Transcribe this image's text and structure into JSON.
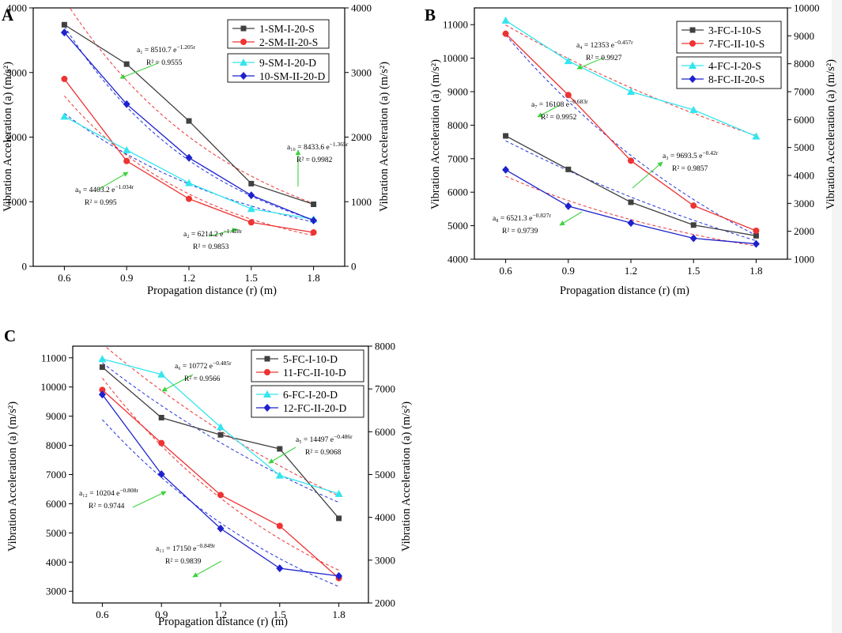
{
  "chart_data": [
    {
      "type": "line",
      "panel": "A",
      "xlabel": "Propagation distance (r) (m)",
      "ylabel_left": "Vibration Acceleration (a) (m/s²)",
      "ylabel_right": "Vibration Acceleration (a) (m/s²)",
      "x": [
        0.6,
        0.9,
        1.2,
        1.5,
        1.8
      ],
      "x_ticks": [
        "0.6",
        "0.9",
        "1.2",
        "1.5",
        "1.8"
      ],
      "xlim": [
        0.45,
        1.95
      ],
      "ylim_left": [
        0,
        4000
      ],
      "ylim_right": [
        0,
        4000
      ],
      "yticks_left": [
        0,
        1000,
        2000,
        3000,
        4000
      ],
      "yticks_right": [
        0,
        1000,
        2000,
        3000,
        4000
      ],
      "legend_groups": [
        [
          "1-SM-I-20-S",
          "2-SM-II-20-S"
        ],
        [
          "9-SM-I-20-D",
          "10-SM-II-20-D"
        ]
      ],
      "series": [
        {
          "name": "1-SM-I-20-S",
          "axis": "left",
          "color": "#404040",
          "marker": "square",
          "values": [
            3740,
            3130,
            2250,
            1280,
            960
          ],
          "fit": {
            "a": 8510.7,
            "b": 1.205,
            "color": "#ee3333",
            "label_main": "a₁ = 8510.7 e",
            "label_exp": "−1.205r",
            "r2": "R² = 0.9555"
          }
        },
        {
          "name": "2-SM-II-20-S",
          "axis": "left",
          "color": "#ee3333",
          "marker": "circle",
          "values": [
            2900,
            1630,
            1045,
            680,
            525
          ],
          "fit": {
            "a": 6214.2,
            "b": 1.428,
            "color": "#ee3333",
            "label_main": "a₂ = 6214.2 e",
            "label_exp": "−1.428r",
            "r2": "R² = 0.9853"
          }
        },
        {
          "name": "9-SM-I-20-D",
          "axis": "right",
          "color": "#33e5ee",
          "marker": "triangle",
          "values": [
            2320,
            1800,
            1290,
            890,
            730
          ],
          "fit": {
            "a": 4403.2,
            "b": 1.034,
            "color": "#2233dd",
            "label_main": "a₉ = 4403.2 e",
            "label_exp": "−1.034r",
            "r2": "R² = 0.995"
          }
        },
        {
          "name": "10-SM-II-20-D",
          "axis": "right",
          "color": "#1e22cc",
          "marker": "diamond",
          "values": [
            3620,
            2510,
            1680,
            1100,
            710
          ],
          "fit": {
            "a": 8433.6,
            "b": 1.365,
            "color": "#2233dd",
            "label_main": "a₁₀ = 8433.6 e",
            "label_exp": "−1.365r",
            "r2": "R² = 0.9982"
          }
        }
      ]
    },
    {
      "type": "line",
      "panel": "B",
      "xlabel": "Propagation distance (r) (m)",
      "ylabel_left": "Vibration Acceleration (a) (m/s²)",
      "ylabel_right": "Vibration Acceleration (a) (m/s²)",
      "x": [
        0.6,
        0.9,
        1.2,
        1.5,
        1.8
      ],
      "x_ticks": [
        "0.6",
        "0.9",
        "1.2",
        "1.5",
        "1.8"
      ],
      "xlim": [
        0.45,
        1.95
      ],
      "ylim_left": [
        4000,
        11500
      ],
      "ylim_right": [
        1000,
        10000
      ],
      "yticks_left": [
        4000,
        5000,
        6000,
        7000,
        8000,
        9000,
        10000,
        11000
      ],
      "yticks_right": [
        1000,
        2000,
        3000,
        4000,
        5000,
        6000,
        7000,
        8000,
        9000,
        10000
      ],
      "legend_groups": [
        [
          "3-FC-I-10-S",
          "7-FC-II-10-S"
        ],
        [
          "4-FC-I-20-S",
          "8-FC-II-20-S"
        ]
      ],
      "series": [
        {
          "name": "3-FC-I-10-S",
          "axis": "left",
          "color": "#404040",
          "marker": "square",
          "values": [
            7680,
            6680,
            5700,
            5020,
            4700
          ],
          "fit": {
            "a": 9693.5,
            "b": 0.42,
            "color": "#2233dd",
            "label_main": "a₃ = 9693.5 e",
            "label_exp": "−0.42r",
            "r2": "R² = 0.9857"
          }
        },
        {
          "name": "7-FC-II-10-S",
          "axis": "left",
          "color": "#ee3333",
          "marker": "circle",
          "values": [
            10730,
            8900,
            6940,
            5600,
            4850
          ],
          "fit": {
            "a": 16108,
            "b": 0.683,
            "color": "#2233dd",
            "label_main": "a₇ = 16108 e",
            "label_exp": "−0.683r",
            "r2": "R² = 0.9952"
          }
        },
        {
          "name": "4-FC-I-20-S",
          "axis": "right",
          "color": "#33e5ee",
          "marker": "triangle",
          "values": [
            9550,
            8100,
            7000,
            6350,
            5400
          ],
          "fit": {
            "a": 12353,
            "b": 0.457,
            "color": "#ee3333",
            "label_main": "a₄ = 12353 e",
            "label_exp": "−0.457r",
            "r2": "R² = 0.9927"
          }
        },
        {
          "name": "8-FC-II-20-S",
          "axis": "right",
          "color": "#1e22cc",
          "marker": "diamond",
          "values": [
            4200,
            2900,
            2300,
            1750,
            1550
          ],
          "fit": {
            "a": 6521.3,
            "b": 0.827,
            "color": "#ee3333",
            "label_main": "a₈ = 6521.3 e",
            "label_exp": "−0.827r",
            "r2": "R² = 0.9739"
          }
        }
      ]
    },
    {
      "type": "line",
      "panel": "C",
      "xlabel": "Propagation distance (r) (m)",
      "ylabel_left": "Vibration Acceleration (a) (m/s²)",
      "ylabel_right": "Vibration Acceleration (a) (m/s²)",
      "x": [
        0.6,
        0.9,
        1.2,
        1.5,
        1.8
      ],
      "x_ticks": [
        "0.6",
        "0.9",
        "1.2",
        "1.5",
        "1.8"
      ],
      "xlim": [
        0.45,
        1.95
      ],
      "ylim_left": [
        2600,
        11400
      ],
      "ylim_right": [
        2000,
        8000
      ],
      "yticks_left": [
        3000,
        4000,
        5000,
        6000,
        7000,
        8000,
        9000,
        10000,
        11000
      ],
      "yticks_right": [
        2000,
        3000,
        4000,
        5000,
        6000,
        7000,
        8000
      ],
      "legend_groups": [
        [
          "5-FC-I-10-D",
          "11-FC-II-10-D"
        ],
        [
          "6-FC-I-20-D",
          "12-FC-II-20-D"
        ]
      ],
      "series": [
        {
          "name": "5-FC-I-10-D",
          "axis": "left",
          "color": "#404040",
          "marker": "square",
          "values": [
            10680,
            8950,
            8360,
            7880,
            5500
          ],
          "fit": {
            "a": 14497,
            "b": 0.486,
            "color": "#2233dd",
            "label_main": "a₅ = 14497 e",
            "label_exp": "−0.486r",
            "r2": "R² = 0.9068"
          }
        },
        {
          "name": "11-FC-II-10-D",
          "axis": "left",
          "color": "#ee3333",
          "marker": "circle",
          "values": [
            9900,
            8080,
            6300,
            5240,
            3450
          ],
          "fit": {
            "a": 17150,
            "b": 0.849,
            "color": "#ee3333",
            "label_main": "a₁₁ = 17150 e",
            "label_exp": "−0.849r",
            "r2": "R² = 0.9839"
          }
        },
        {
          "name": "6-FC-I-20-D",
          "axis": "right",
          "color": "#33e5ee",
          "marker": "triangle",
          "values": [
            7700,
            7340,
            6110,
            4980,
            4550
          ],
          "fit": {
            "a": 10772,
            "b": 0.485,
            "color": "#ee3333",
            "label_main": "a₆ = 10772 e",
            "label_exp": "−0.485r",
            "r2": "R² = 0.9566"
          }
        },
        {
          "name": "12-FC-II-20-D",
          "axis": "right",
          "color": "#1e22cc",
          "marker": "diamond",
          "values": [
            6870,
            5010,
            3740,
            2810,
            2630
          ],
          "fit": {
            "a": 10204,
            "b": 0.808,
            "color": "#2233dd",
            "label_main": "a₁₂ = 10204 e",
            "label_exp": "−0.808r",
            "r2": "R² = 0.9744"
          }
        }
      ]
    }
  ]
}
